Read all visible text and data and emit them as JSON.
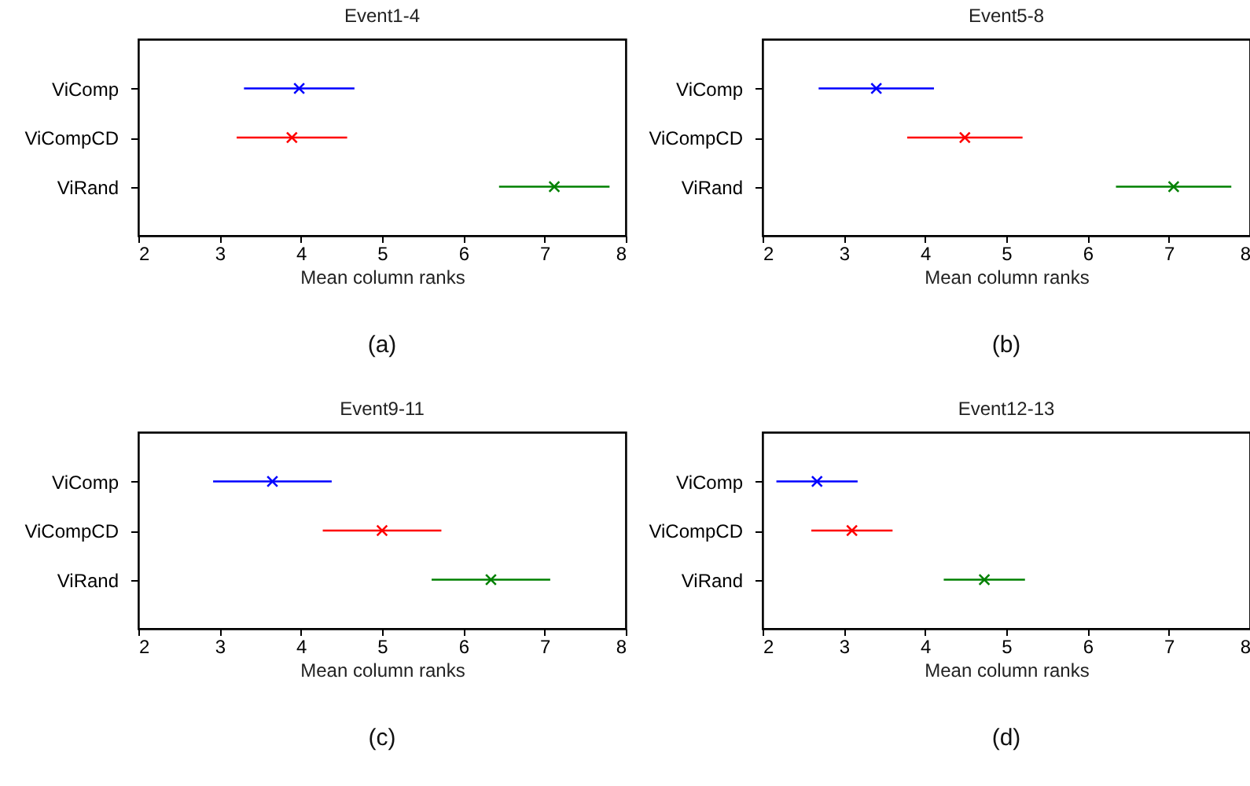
{
  "chart_data": [
    {
      "type": "scatter",
      "title": "Event1-4",
      "xlabel": "Mean column ranks",
      "orientation": "horizontal",
      "categories": [
        "ViComp",
        "ViCompCD",
        "ViRand"
      ],
      "values": [
        3.98,
        3.89,
        7.12
      ],
      "errors": [
        0.68,
        0.68,
        0.68
      ],
      "colors": [
        "#0000ff",
        "#ff0000",
        "#008000"
      ],
      "marker": "cross",
      "xlim": [
        2,
        8
      ],
      "xticks": [
        2,
        3,
        4,
        5,
        6,
        7,
        8
      ],
      "grid": false,
      "annotations": [
        "(a)"
      ]
    },
    {
      "type": "scatter",
      "title": "Event5-8",
      "xlabel": "Mean column ranks",
      "orientation": "horizontal",
      "categories": [
        "ViComp",
        "ViCompCD",
        "ViRand"
      ],
      "values": [
        3.4,
        4.49,
        7.06
      ],
      "errors": [
        0.71,
        0.71,
        0.71
      ],
      "colors": [
        "#0000ff",
        "#ff0000",
        "#008000"
      ],
      "marker": "cross",
      "xlim": [
        2,
        8
      ],
      "xticks": [
        2,
        3,
        4,
        5,
        6,
        7,
        8
      ],
      "grid": false,
      "annotations": [
        "(b)"
      ]
    },
    {
      "type": "scatter",
      "title": "Event9-11",
      "xlabel": "Mean column ranks",
      "orientation": "horizontal",
      "categories": [
        "ViComp",
        "ViCompCD",
        "ViRand"
      ],
      "values": [
        3.65,
        5.0,
        6.34
      ],
      "errors": [
        0.73,
        0.73,
        0.73
      ],
      "colors": [
        "#0000ff",
        "#ff0000",
        "#008000"
      ],
      "marker": "cross",
      "xlim": [
        2,
        8
      ],
      "xticks": [
        2,
        3,
        4,
        5,
        6,
        7,
        8
      ],
      "grid": false,
      "annotations": [
        "(c)"
      ]
    },
    {
      "type": "scatter",
      "title": "Event12-13",
      "xlabel": "Mean column ranks",
      "orientation": "horizontal",
      "categories": [
        "ViComp",
        "ViCompCD",
        "ViRand"
      ],
      "values": [
        2.67,
        3.1,
        4.73
      ],
      "errors": [
        0.5,
        0.5,
        0.5
      ],
      "colors": [
        "#0000ff",
        "#ff0000",
        "#008000"
      ],
      "marker": "cross",
      "xlim": [
        2,
        8
      ],
      "xticks": [
        2,
        3,
        4,
        5,
        6,
        7,
        8
      ],
      "grid": false,
      "annotations": [
        "(d)"
      ]
    }
  ]
}
